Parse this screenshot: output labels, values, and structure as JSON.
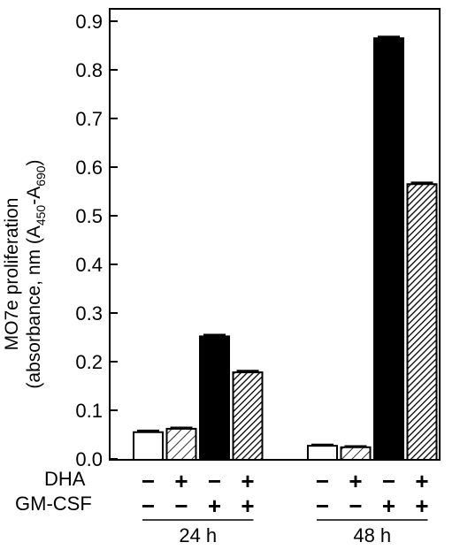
{
  "chart_data": {
    "type": "bar",
    "ylabel_line1": "MO7e proliferation",
    "ylabel_line2_prefix": "(absorbance, nm (A",
    "ylabel_sub1": "450",
    "ylabel_dash": "-A",
    "ylabel_sub2": "690",
    "ylabel_suffix": ")",
    "ylim": [
      0,
      0.9
    ],
    "yticks": [
      "0.0",
      "0.1",
      "0.2",
      "0.3",
      "0.4",
      "0.5",
      "0.6",
      "0.7",
      "0.8",
      "0.9"
    ],
    "row_labels": {
      "dha": "DHA",
      "gmcsf": "GM-CSF"
    },
    "groups": [
      {
        "name": "24 h",
        "bars": [
          {
            "value": 0.055,
            "error": 0.003,
            "fill": "open",
            "dha": "−",
            "gmcsf": "−"
          },
          {
            "value": 0.062,
            "error": 0.002,
            "fill": "hatched-light",
            "dha": "+",
            "gmcsf": "−"
          },
          {
            "value": 0.252,
            "error": 0.003,
            "fill": "solid",
            "dha": "−",
            "gmcsf": "+"
          },
          {
            "value": 0.178,
            "error": 0.003,
            "fill": "hatched-dense",
            "dha": "+",
            "gmcsf": "+"
          }
        ]
      },
      {
        "name": "48 h",
        "bars": [
          {
            "value": 0.027,
            "error": 0.002,
            "fill": "open",
            "dha": "−",
            "gmcsf": "−"
          },
          {
            "value": 0.024,
            "error": 0.002,
            "fill": "hatched-light",
            "dha": "+",
            "gmcsf": "−"
          },
          {
            "value": 0.865,
            "error": 0.003,
            "fill": "solid",
            "dha": "−",
            "gmcsf": "+"
          },
          {
            "value": 0.565,
            "error": 0.003,
            "fill": "hatched-dense",
            "dha": "+",
            "gmcsf": "+"
          }
        ]
      }
    ],
    "grid": false,
    "colors": {
      "ink": "#000000",
      "background": "#ffffff"
    }
  }
}
